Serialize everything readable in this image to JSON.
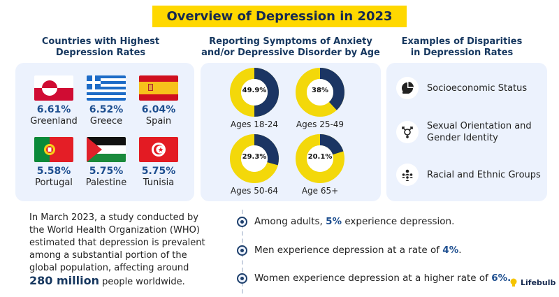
{
  "title": "Overview of Depression in 2023",
  "sections": {
    "countries_title": "Countries with Highest Depression Rates",
    "age_title": "Reporting Symptoms of Anxiety and/or Depressive Disorder by Age",
    "disparities_title": "Examples of Disparities in Depression Rates"
  },
  "countries": [
    {
      "name": "Greenland",
      "pct": "6.61%",
      "flag": "greenland-flag-icon"
    },
    {
      "name": "Greece",
      "pct": "6.52%",
      "flag": "greece-flag-icon"
    },
    {
      "name": "Spain",
      "pct": "6.04%",
      "flag": "spain-flag-icon"
    },
    {
      "name": "Portugal",
      "pct": "5.58%",
      "flag": "portugal-flag-icon"
    },
    {
      "name": "Palestine",
      "pct": "5.75%",
      "flag": "palestine-flag-icon"
    },
    {
      "name": "Tunisia",
      "pct": "5.75%",
      "flag": "tunisia-flag-icon"
    }
  ],
  "age_groups": [
    {
      "label": "Ages 18-24",
      "pct_text": "49.9%",
      "value": 49.9
    },
    {
      "label": "Ages 25-49",
      "pct_text": "38%",
      "value": 38
    },
    {
      "label": "Ages 50-64",
      "pct_text": "29.3%",
      "value": 29.3
    },
    {
      "label": "Age 65+",
      "pct_text": "20.1%",
      "value": 20.1
    }
  ],
  "disparities": [
    {
      "text": "Socioeconomic Status",
      "icon": "pie-chart-hand-icon"
    },
    {
      "text": "Sexual Orientation and Gender Identity",
      "icon": "gender-symbols-icon"
    },
    {
      "text": "Racial and Ethnic Groups",
      "icon": "diverse-people-icon"
    }
  ],
  "paragraph": {
    "text": "In March 2023, a study conducted by the World Health Organization (WHO) estimated that depression is prevalent among a substantial portion of the global population, affecting around",
    "highlight": "280 million",
    "tail": "people worldwide."
  },
  "facts": [
    {
      "pre": "Among adults, ",
      "highlight": "5%",
      "post": " experience depression."
    },
    {
      "pre": "Men experience depression at a rate of ",
      "highlight": "4%",
      "post": "."
    },
    {
      "pre": "Women experience depression at a higher rate of ",
      "highlight": "6%.",
      "post": ""
    }
  ],
  "logo": "Lifebulb",
  "colors": {
    "navy": "#16375f",
    "yellow": "#ffd800",
    "donut_dark": "#1b3563",
    "donut_light": "#f3d80a",
    "panel": "#ecf2fd"
  }
}
